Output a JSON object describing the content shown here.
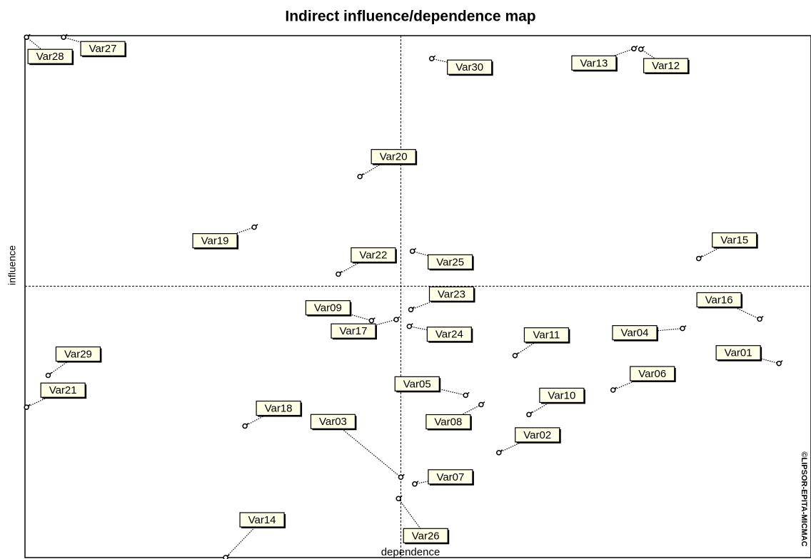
{
  "chart_data": {
    "type": "scatter",
    "title": "Indirect influence/dependence map",
    "x_label": "dependence",
    "y_label": "influence",
    "credit": "©LIPSOR-EPITA-MICMAC",
    "labels": [
      "Var01",
      "Var02",
      "Var03",
      "Var04",
      "Var05",
      "Var06",
      "Var07",
      "Var08",
      "Var09",
      "Var10",
      "Var11",
      "Var12",
      "Var13",
      "Var14",
      "Var15",
      "Var16",
      "Var17",
      "Var18",
      "Var19",
      "Var20",
      "Var21",
      "Var22",
      "Var23",
      "Var24",
      "Var25",
      "Var26",
      "Var27",
      "Var28",
      "Var29",
      "Var30"
    ],
    "x": [
      97.7,
      61.4,
      48.7,
      85.2,
      57.1,
      76.2,
      50.5,
      59.1,
      44.9,
      65.3,
      63.5,
      79.8,
      78.9,
      26.0,
      87.3,
      95.2,
      48.1,
      28.5,
      29.7,
      43.4,
      0.2,
      40.6,
      50.0,
      49.8,
      50.2,
      48.4,
      5.0,
      0.2,
      3.0,
      52.7
    ],
    "values": [
      37.2,
      20.1,
      15.4,
      43.9,
      31.1,
      32.1,
      14.1,
      29.3,
      45.4,
      27.4,
      38.7,
      97.4,
      97.5,
      0,
      57.3,
      45.7,
      45.6,
      25.2,
      63.3,
      73.0,
      28.8,
      54.3,
      47.5,
      44.3,
      58.7,
      11.3,
      99.7,
      99.7,
      34.9,
      95.6
    ],
    "mean_lines": {
      "x": 48.7,
      "y": 52.0
    },
    "xlim": [
      0,
      100
    ],
    "ylim": [
      0,
      100
    ],
    "color": "#000000",
    "label_fill": "#ffffe8"
  }
}
